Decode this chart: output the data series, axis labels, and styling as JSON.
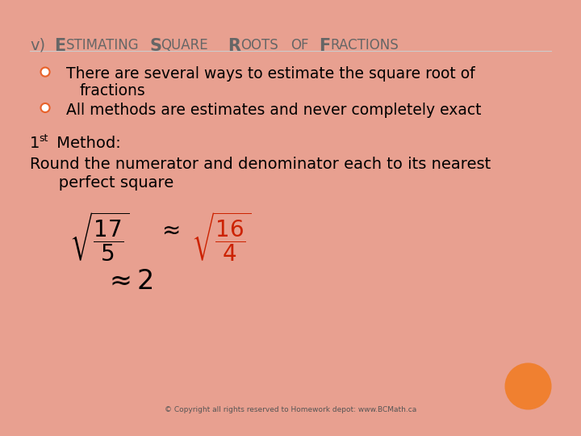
{
  "bullet1_line1": "There are several ways to estimate the square root of",
  "bullet1_line2": "fractions",
  "bullet2": "All methods are estimates and never completely exact",
  "round_line1": "Round the numerator and denominator each to its nearest",
  "round_line2": "   perfect square",
  "bg_color": "#FFFFFF",
  "border_color": "#E8A090",
  "title_color": "#666666",
  "bullet_color": "#E8622A",
  "body_color": "#000000",
  "math_black": "#000000",
  "math_red": "#CC2200",
  "orange_circle_color": "#F08030",
  "footer_text": "© Copyright all rights reserved to Homework depot: www.BCMath.ca"
}
